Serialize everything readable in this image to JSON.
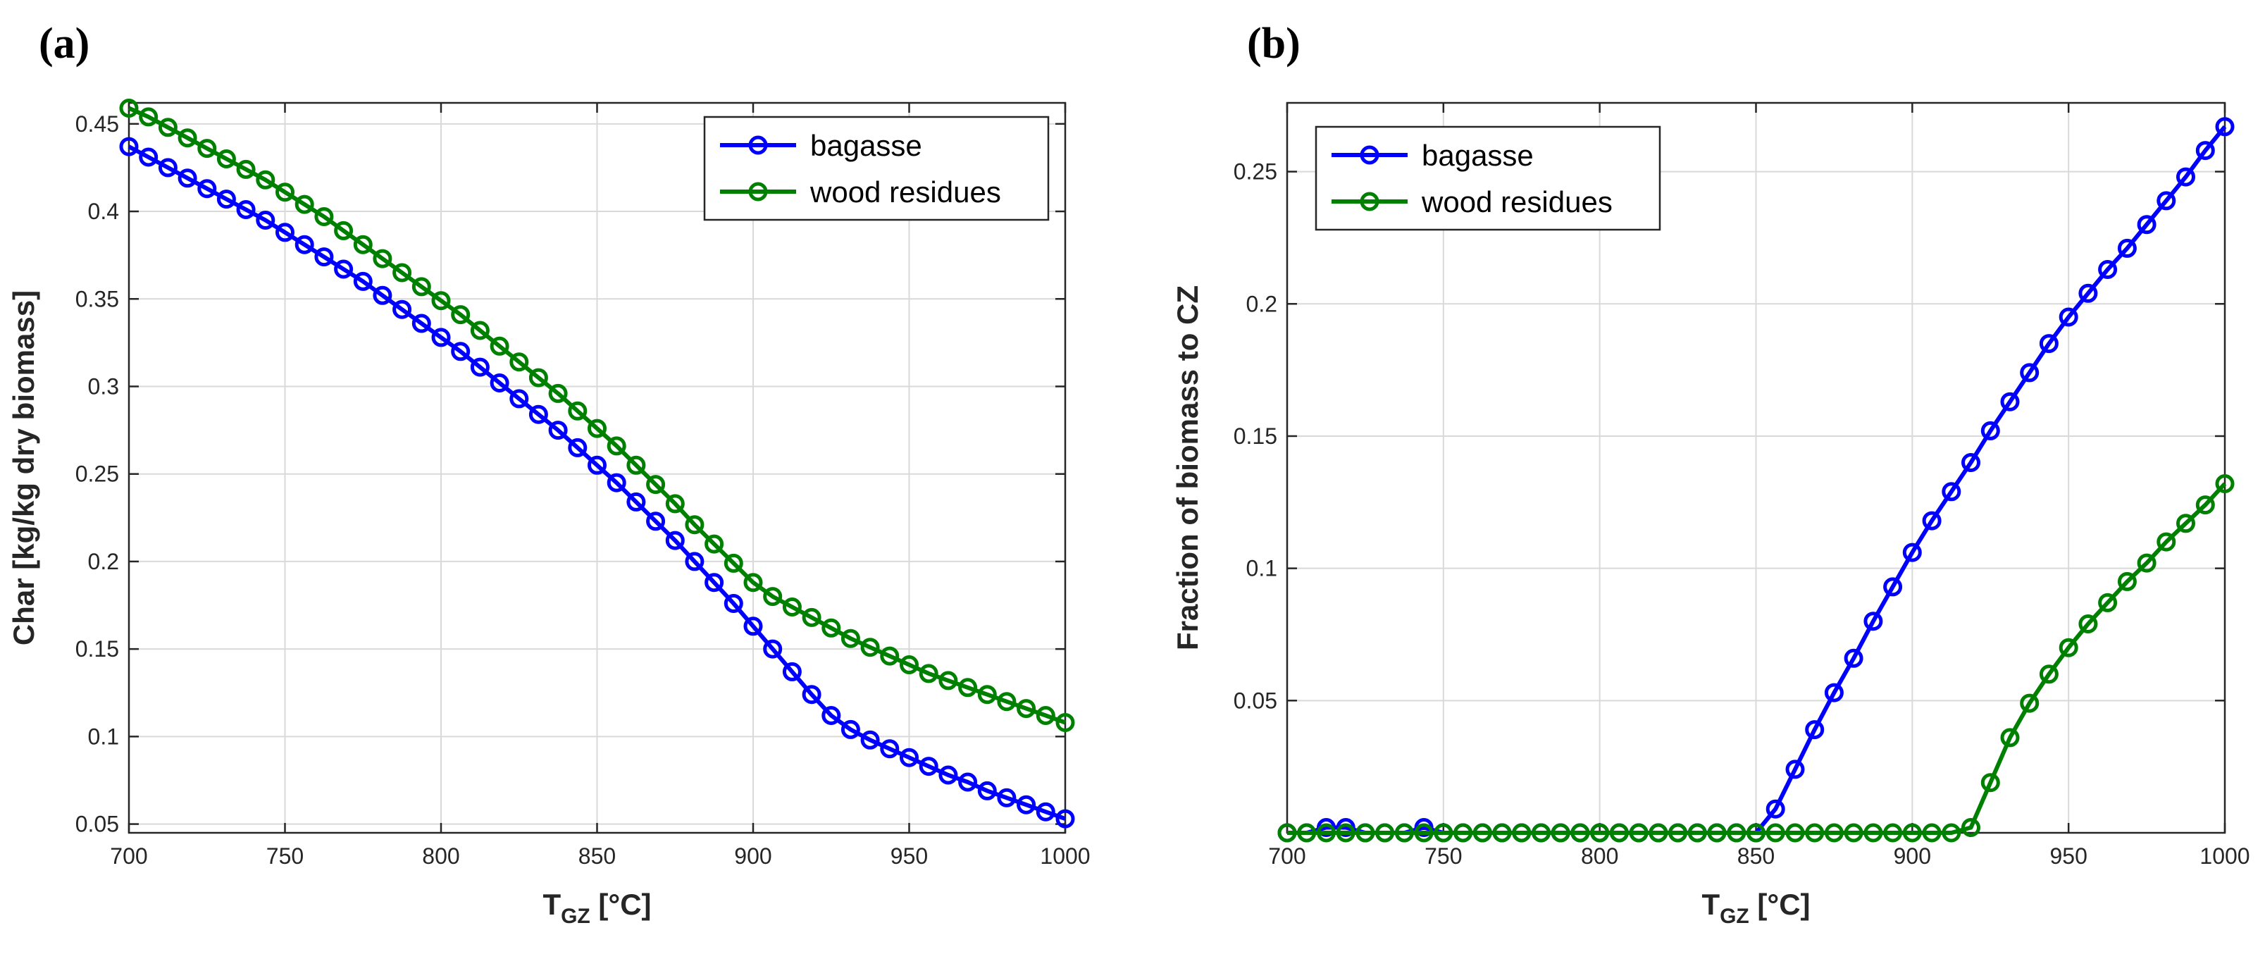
{
  "chart_data": [
    {
      "type": "line",
      "panel_label": "(a)",
      "xlabel_main": "T",
      "xlabel_sub": "GZ",
      "xlabel_unit": " [°C]",
      "ylabel": "Char [kg/kg dry biomass]",
      "xlim": [
        700,
        1000
      ],
      "ylim": [
        0.045,
        0.462
      ],
      "xticks": [
        700,
        750,
        800,
        850,
        900,
        950,
        1000
      ],
      "yticks": [
        0.05,
        0.1,
        0.15,
        0.2,
        0.25,
        0.3,
        0.35,
        0.4,
        0.45
      ],
      "ytick_labels": [
        "0.05",
        "0.1",
        "0.15",
        "0.2",
        "0.25",
        "0.3",
        "0.35",
        "0.4",
        "0.45"
      ],
      "grid": true,
      "legend_position": "top-right",
      "x": [
        700,
        706.25,
        712.5,
        718.75,
        725,
        731.25,
        737.5,
        743.75,
        750,
        756.25,
        762.5,
        768.75,
        775,
        781.25,
        787.5,
        793.75,
        800,
        806.25,
        812.5,
        818.75,
        825,
        831.25,
        837.5,
        843.75,
        850,
        856.25,
        862.5,
        868.75,
        875,
        881.25,
        887.5,
        893.75,
        900,
        906.25,
        912.5,
        918.75,
        925,
        931.25,
        937.5,
        943.75,
        950,
        956.25,
        962.5,
        968.75,
        975,
        981.25,
        987.5,
        993.75,
        1000
      ],
      "series": [
        {
          "name": "bagasse",
          "color": "#0000ff",
          "values": [
            0.437,
            0.431,
            0.425,
            0.419,
            0.413,
            0.407,
            0.401,
            0.395,
            0.388,
            0.381,
            0.374,
            0.367,
            0.36,
            0.352,
            0.344,
            0.336,
            0.328,
            0.32,
            0.311,
            0.302,
            0.293,
            0.284,
            0.275,
            0.265,
            0.255,
            0.245,
            0.234,
            0.223,
            0.212,
            0.2,
            0.188,
            0.176,
            0.163,
            0.15,
            0.137,
            0.124,
            0.112,
            0.104,
            0.098,
            0.093,
            0.088,
            0.083,
            0.078,
            0.074,
            0.069,
            0.065,
            0.061,
            0.057,
            0.053
          ]
        },
        {
          "name": "wood residues",
          "color": "#008000",
          "values": [
            0.459,
            0.454,
            0.448,
            0.442,
            0.436,
            0.43,
            0.424,
            0.418,
            0.411,
            0.404,
            0.397,
            0.389,
            0.381,
            0.373,
            0.365,
            0.357,
            0.349,
            0.341,
            0.332,
            0.323,
            0.314,
            0.305,
            0.296,
            0.286,
            0.276,
            0.266,
            0.255,
            0.244,
            0.233,
            0.221,
            0.21,
            0.199,
            0.188,
            0.18,
            0.174,
            0.168,
            0.162,
            0.156,
            0.151,
            0.146,
            0.141,
            0.136,
            0.132,
            0.128,
            0.124,
            0.12,
            0.116,
            0.112,
            0.108
          ]
        }
      ]
    },
    {
      "type": "line",
      "panel_label": "(b)",
      "xlabel_main": "T",
      "xlabel_sub": "GZ",
      "xlabel_unit": " [°C]",
      "ylabel": "Fraction of biomass to CZ",
      "xlim": [
        700,
        1000
      ],
      "ylim": [
        0.0,
        0.276
      ],
      "xticks": [
        700,
        750,
        800,
        850,
        900,
        950,
        1000
      ],
      "yticks": [
        0.05,
        0.1,
        0.15,
        0.2,
        0.25
      ],
      "ytick_labels": [
        "0.05",
        "0.1",
        "0.15",
        "0.2",
        "0.25"
      ],
      "grid": true,
      "legend_position": "top-left",
      "x": [
        700,
        706.25,
        712.5,
        718.75,
        725,
        731.25,
        737.5,
        743.75,
        750,
        756.25,
        762.5,
        768.75,
        775,
        781.25,
        787.5,
        793.75,
        800,
        806.25,
        812.5,
        818.75,
        825,
        831.25,
        837.5,
        843.75,
        850,
        856.25,
        862.5,
        868.75,
        875,
        881.25,
        887.5,
        893.75,
        900,
        906.25,
        912.5,
        918.75,
        925,
        931.25,
        937.5,
        943.75,
        950,
        956.25,
        962.5,
        968.75,
        975,
        981.25,
        987.5,
        993.75,
        1000
      ],
      "series": [
        {
          "name": "bagasse",
          "color": "#0000ff",
          "values": [
            0.0,
            0.0,
            0.002,
            0.002,
            0.0,
            0.0,
            0.0,
            0.002,
            0.0,
            0.0,
            0.0,
            0.0,
            0.0,
            0.0,
            0.0,
            0.0,
            0.0,
            0.0,
            0.0,
            0.0,
            0.0,
            0.0,
            0.0,
            0.0,
            0.0,
            0.009,
            0.024,
            0.039,
            0.053,
            0.066,
            0.08,
            0.093,
            0.106,
            0.118,
            0.129,
            0.14,
            0.152,
            0.163,
            0.174,
            0.185,
            0.195,
            0.204,
            0.213,
            0.221,
            0.23,
            0.239,
            0.248,
            0.258,
            0.267
          ]
        },
        {
          "name": "wood residues",
          "color": "#008000",
          "values": [
            0.0,
            0.0,
            0.0,
            0.0,
            0.0,
            0.0,
            0.0,
            0.0,
            0.0,
            0.0,
            0.0,
            0.0,
            0.0,
            0.0,
            0.0,
            0.0,
            0.0,
            0.0,
            0.0,
            0.0,
            0.0,
            0.0,
            0.0,
            0.0,
            0.0,
            0.0,
            0.0,
            0.0,
            0.0,
            0.0,
            0.0,
            0.0,
            0.0,
            0.0,
            0.0,
            0.002,
            0.019,
            0.036,
            0.049,
            0.06,
            0.07,
            0.079,
            0.087,
            0.095,
            0.102,
            0.11,
            0.117,
            0.124,
            0.132
          ]
        }
      ]
    }
  ]
}
